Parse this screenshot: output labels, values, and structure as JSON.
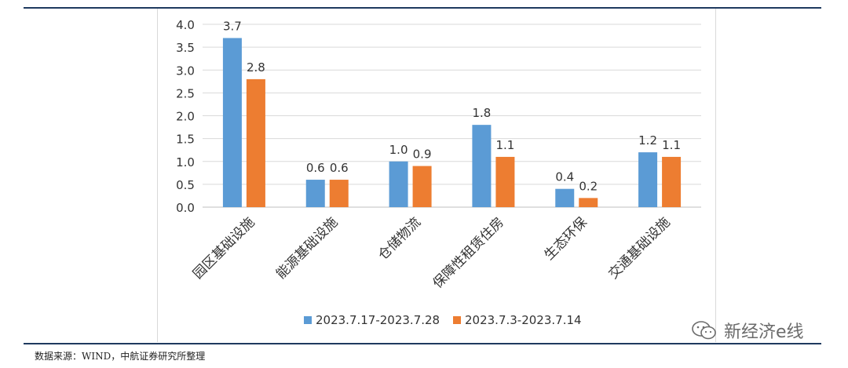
{
  "chart_data": {
    "type": "bar",
    "categories": [
      "园区基础设施",
      "能源基础设施",
      "仓储物流",
      "保障性租赁住房",
      "生态环保",
      "交通基础设施"
    ],
    "series": [
      {
        "name": "2023.7.17-2023.7.28",
        "color": "#5b9bd5",
        "values": [
          3.7,
          0.6,
          1.0,
          1.8,
          0.4,
          1.2
        ],
        "labels": [
          "3.7",
          "0.6",
          "1.0",
          "1.8",
          "0.4",
          "1.2"
        ]
      },
      {
        "name": "2023.7.3-2023.7.14",
        "color": "#ed7d31",
        "values": [
          2.8,
          0.6,
          0.9,
          1.1,
          0.2,
          1.1
        ],
        "labels": [
          "2.8",
          "0.6",
          "0.9",
          "1.1",
          "0.2",
          "1.1"
        ]
      }
    ],
    "yticks": [
      "0.0",
      "0.5",
      "1.0",
      "1.5",
      "2.0",
      "2.5",
      "3.0",
      "3.5",
      "4.0"
    ],
    "ylim": [
      0,
      4
    ],
    "grid": true,
    "legend": "bottom"
  },
  "source_note": "数据来源：WIND，中航证券研究所整理",
  "watermark": "新经济e线"
}
